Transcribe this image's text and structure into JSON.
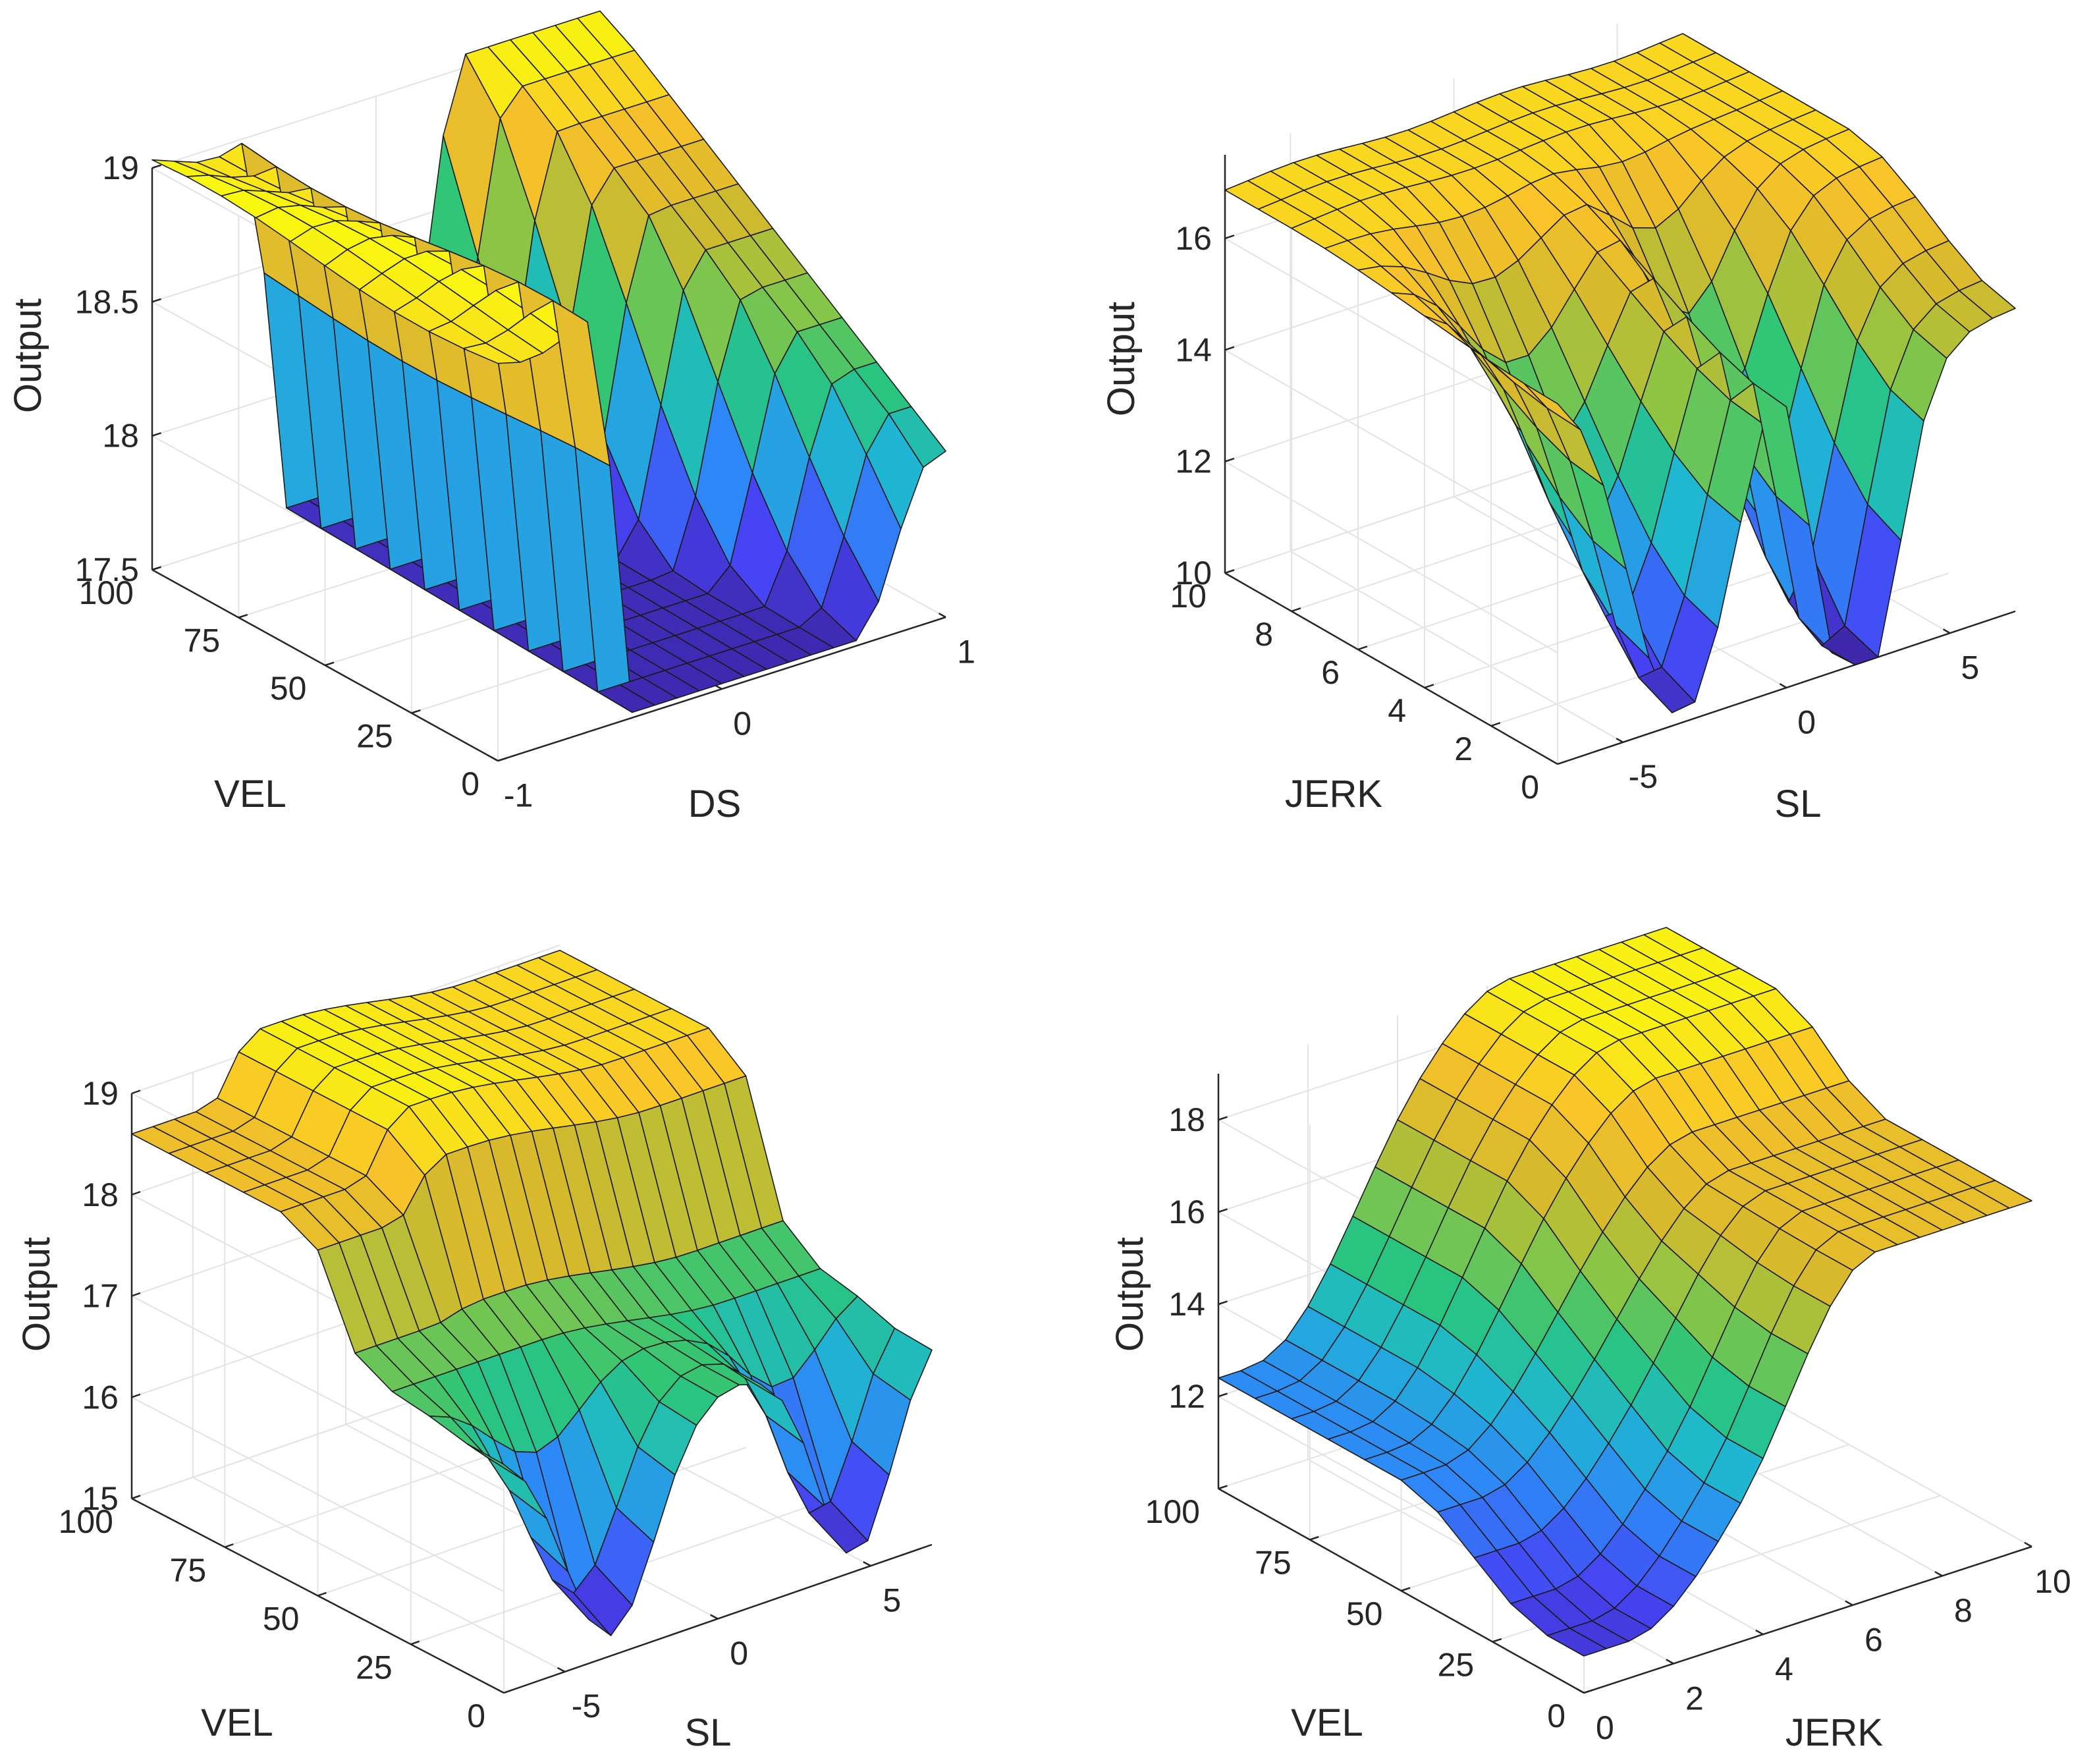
{
  "figure": {
    "colormap": [
      "#3e26a8",
      "#4743f3",
      "#2e87f7",
      "#1fb8d0",
      "#2ac57a",
      "#8dc544",
      "#d6b92d",
      "#f9c22a",
      "#f9fb0e"
    ]
  },
  "chart_data": [
    {
      "id": "plot-1",
      "type": "surface",
      "title": "",
      "xlabel": "DS",
      "ylabel": "VEL",
      "zlabel": "Output",
      "xlim": [
        -1,
        1
      ],
      "ylim": [
        0,
        100
      ],
      "zlim": [
        17.5,
        19
      ],
      "x_ticks": [
        "-1",
        "0",
        "1"
      ],
      "y_ticks": [
        "0",
        "25",
        "50",
        "75",
        "100"
      ],
      "z_ticks": [
        "17.5",
        "18",
        "18.5",
        "19"
      ],
      "grid": true,
      "surface": {
        "model": "ds_vel",
        "x_range": [
          -1,
          1
        ],
        "y_range": [
          0,
          100
        ],
        "nx": 21,
        "ny": 11,
        "zmin": 17.5,
        "zmax": 19.05
      }
    },
    {
      "id": "plot-2",
      "type": "surface",
      "title": "",
      "xlabel": "SL",
      "ylabel": "JERK",
      "zlabel": "Output",
      "xlim": [
        -7,
        7
      ],
      "ylim": [
        0,
        10
      ],
      "zlim": [
        10,
        17.5
      ],
      "x_ticks": [
        "-5",
        "0",
        "5"
      ],
      "y_ticks": [
        "0",
        "2",
        "4",
        "6",
        "8",
        "10"
      ],
      "z_ticks": [
        "10",
        "12",
        "14",
        "16"
      ],
      "grid": true,
      "surface": {
        "model": "sl_jerk",
        "x_range": [
          -7,
          7
        ],
        "y_range": [
          0,
          10
        ],
        "nx": 21,
        "ny": 11,
        "zmin": 10,
        "zmax": 17.5
      }
    },
    {
      "id": "plot-3",
      "type": "surface",
      "title": "",
      "xlabel": "SL",
      "ylabel": "VEL",
      "zlabel": "Output",
      "xlim": [
        -7,
        7
      ],
      "ylim": [
        0,
        100
      ],
      "zlim": [
        15,
        19
      ],
      "x_ticks": [
        "-5",
        "0",
        "5"
      ],
      "y_ticks": [
        "0",
        "25",
        "50",
        "75",
        "100"
      ],
      "z_ticks": [
        "15",
        "16",
        "17",
        "18",
        "19"
      ],
      "grid": true,
      "surface": {
        "model": "sl_vel",
        "x_range": [
          -7,
          7
        ],
        "y_range": [
          0,
          100
        ],
        "nx": 21,
        "ny": 11,
        "zmin": 15,
        "zmax": 19.3
      }
    },
    {
      "id": "plot-4",
      "type": "surface",
      "title": "",
      "xlabel": "JERK",
      "ylabel": "VEL",
      "zlabel": "Output",
      "xlim": [
        0,
        10
      ],
      "ylim": [
        0,
        100
      ],
      "zlim": [
        10,
        19
      ],
      "x_ticks": [
        "0",
        "2",
        "4",
        "6",
        "8",
        "10"
      ],
      "y_ticks": [
        "0",
        "25",
        "50",
        "75",
        "100"
      ],
      "z_ticks": [
        "12",
        "14",
        "16",
        "18"
      ],
      "grid": true,
      "surface": {
        "model": "jerk_vel",
        "x_range": [
          0,
          10
        ],
        "y_range": [
          0,
          100
        ],
        "nx": 21,
        "ny": 11,
        "zmin": 10,
        "zmax": 19.2
      }
    }
  ]
}
